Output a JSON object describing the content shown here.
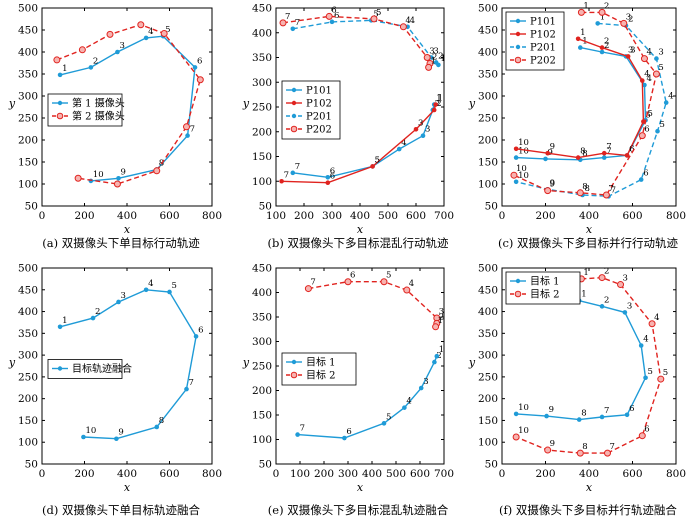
{
  "colors": {
    "blue": "#1f9bd7",
    "red": "#e0231f",
    "axis": "#000000"
  },
  "chart_data": [
    {
      "id": "a",
      "type": "line",
      "caption": "(a) 双摄像头下单目标行动轨迹",
      "xlabel": "x",
      "ylabel": "y",
      "xlim": [
        0,
        800
      ],
      "ylim": [
        50,
        500
      ],
      "xticks": [
        "0",
        "200",
        "400",
        "600",
        "800"
      ],
      "yticks": [
        "50",
        "100",
        "150",
        "200",
        "250",
        "300",
        "350",
        "400",
        "450",
        "500"
      ],
      "legend": {
        "position": "center-left"
      },
      "series": [
        {
          "name": "第 1 摄像头",
          "color": "blue",
          "dashed": false,
          "marker": "dot",
          "x": [
            85,
            230,
            355,
            490,
            570,
            720,
            685,
            540,
            360,
            230
          ],
          "y": [
            348,
            365,
            400,
            432,
            436,
            365,
            210,
            133,
            113,
            107
          ],
          "labels": [
            "1",
            "2",
            "3",
            "4",
            "5",
            "6",
            "7",
            "8",
            "9",
            "10"
          ]
        },
        {
          "name": "第 2 摄像头",
          "color": "red",
          "dashed": true,
          "marker": "circle",
          "x": [
            70,
            190,
            320,
            465,
            575,
            745,
            680,
            540,
            355,
            170
          ],
          "y": [
            382,
            405,
            440,
            462,
            442,
            337,
            230,
            130,
            100,
            113
          ],
          "labels": [
            "",
            "",
            "",
            "",
            "",
            "",
            "",
            "",
            "",
            ""
          ]
        }
      ]
    },
    {
      "id": "b",
      "type": "line",
      "caption": "(b) 双摄像头下多目标混乱行动轨迹",
      "xlabel": "x",
      "ylabel": "y",
      "xlim": [
        100,
        700
      ],
      "ylim": [
        50,
        450
      ],
      "xticks": [
        "100",
        "200",
        "300",
        "400",
        "500",
        "600",
        "700"
      ],
      "yticks": [
        "50",
        "100",
        "150",
        "200",
        "250",
        "300",
        "350",
        "400",
        "450"
      ],
      "legend": {
        "position": "center-left"
      },
      "series": [
        {
          "name": "P101",
          "color": "blue",
          "dashed": false,
          "marker": "dot",
          "x": [
            160,
            285,
            445,
            540,
            625,
            660,
            665
          ],
          "y": [
            117,
            108,
            130,
            165,
            192,
            244,
            255
          ],
          "labels": [
            "7",
            "6",
            "5",
            "4",
            "3",
            "2",
            "1"
          ]
        },
        {
          "name": "P102",
          "color": "red",
          "dashed": false,
          "marker": "dot",
          "x": [
            120,
            285,
            445,
            600,
            665,
            670
          ],
          "y": [
            100,
            97,
            130,
            205,
            244,
            255
          ],
          "labels": [
            "7",
            "6",
            "5",
            "3",
            "2",
            "1"
          ]
        },
        {
          "name": "P201",
          "color": "blue",
          "dashed": true,
          "marker": "dot",
          "x": [
            160,
            300,
            440,
            570,
            655,
            672,
            680
          ],
          "y": [
            408,
            422,
            425,
            412,
            350,
            340,
            335
          ],
          "labels": [
            "7",
            "6",
            "5",
            "4",
            "3",
            "2",
            "1"
          ]
        },
        {
          "name": "P202",
          "color": "red",
          "dashed": true,
          "marker": "circle",
          "x": [
            125,
            290,
            450,
            555,
            640,
            650,
            645
          ],
          "y": [
            420,
            433,
            428,
            412,
            350,
            338,
            330
          ],
          "labels": [
            "7",
            "6",
            "5",
            "4",
            "3",
            "2",
            "1"
          ]
        }
      ]
    },
    {
      "id": "c",
      "type": "line",
      "caption": "(c) 双摄像头下多目标并行行动轨迹",
      "xlabel": "x",
      "ylabel": "y",
      "xlim": [
        0,
        800
      ],
      "ylim": [
        50,
        500
      ],
      "xticks": [
        "0",
        "200",
        "400",
        "600",
        "800"
      ],
      "yticks": [
        "50",
        "100",
        "150",
        "200",
        "250",
        "300",
        "350",
        "400",
        "450",
        "500"
      ],
      "legend": {
        "position": "top-left"
      },
      "series": [
        {
          "name": "P101",
          "color": "blue",
          "dashed": false,
          "marker": "dot",
          "x": [
            360,
            460,
            570,
            655,
            660,
            575,
            470,
            360,
            200,
            65
          ],
          "y": [
            410,
            400,
            390,
            325,
            245,
            165,
            160,
            155,
            157,
            160
          ],
          "labels": [
            "1",
            "2",
            "3",
            "4",
            "5",
            "6",
            "7",
            "8",
            "9",
            "10"
          ]
        },
        {
          "name": "P102",
          "color": "red",
          "dashed": false,
          "marker": "dot",
          "x": [
            350,
            460,
            580,
            645,
            650,
            575,
            470,
            350,
            210,
            65
          ],
          "y": [
            430,
            410,
            390,
            335,
            242,
            165,
            170,
            160,
            170,
            180
          ],
          "labels": [
            "1",
            "2",
            "3",
            "4",
            "5",
            "6",
            "7",
            "8",
            "9",
            "10"
          ]
        },
        {
          "name": "P201",
          "color": "blue",
          "dashed": true,
          "marker": "dot",
          "x": [
            440,
            570,
            710,
            755,
            715,
            640,
            490,
            370,
            210,
            65
          ],
          "y": [
            465,
            460,
            385,
            285,
            220,
            110,
            72,
            75,
            88,
            105
          ],
          "labels": [
            "1",
            "2",
            "3",
            "4",
            "5",
            "6",
            "7",
            "8",
            "9",
            "10"
          ]
        },
        {
          "name": "P202",
          "color": "red",
          "dashed": true,
          "marker": "circle",
          "x": [
            365,
            460,
            560,
            655,
            710,
            645,
            480,
            360,
            210,
            55
          ],
          "y": [
            490,
            490,
            465,
            385,
            350,
            210,
            75,
            80,
            85,
            120
          ],
          "labels": [
            "1",
            "2",
            "3",
            "4",
            "5",
            "6",
            "7",
            "8",
            "9",
            "10"
          ]
        }
      ]
    },
    {
      "id": "d",
      "type": "line",
      "caption": "(d) 双摄像头下单目标轨迹融合",
      "xlabel": "x",
      "ylabel": "y",
      "xlim": [
        0,
        800
      ],
      "ylim": [
        50,
        500
      ],
      "xticks": [
        "0",
        "200",
        "400",
        "600",
        "800"
      ],
      "yticks": [
        "50",
        "100",
        "150",
        "200",
        "250",
        "300",
        "350",
        "400",
        "450",
        "500"
      ],
      "legend": {
        "position": "center-left"
      },
      "series": [
        {
          "name": "目标轨迹融合",
          "color": "blue",
          "dashed": false,
          "marker": "dot",
          "x": [
            85,
            240,
            360,
            490,
            600,
            725,
            680,
            540,
            350,
            195
          ],
          "y": [
            365,
            385,
            422,
            450,
            445,
            343,
            222,
            135,
            108,
            112
          ],
          "labels": [
            "1",
            "2",
            "3",
            "4",
            "5",
            "6",
            "7",
            "8",
            "9",
            "10"
          ]
        }
      ]
    },
    {
      "id": "e",
      "type": "line",
      "caption": "(e) 双摄像头下多目标混乱轨迹融合",
      "xlabel": "x",
      "ylabel": "y",
      "xlim": [
        0,
        700
      ],
      "ylim": [
        50,
        450
      ],
      "xticks": [
        "0",
        "100",
        "200",
        "300",
        "400",
        "500",
        "600",
        "700"
      ],
      "yticks": [
        "50",
        "100",
        "150",
        "200",
        "250",
        "300",
        "350",
        "400",
        "450"
      ],
      "legend": {
        "position": "center-left"
      },
      "series": [
        {
          "name": "目标 1",
          "color": "blue",
          "dashed": false,
          "marker": "dot",
          "x": [
            90,
            285,
            450,
            535,
            605,
            660,
            670
          ],
          "y": [
            110,
            103,
            133,
            165,
            205,
            258,
            270
          ],
          "labels": [
            "7",
            "6",
            "5",
            "4",
            "3",
            "2",
            "1"
          ]
        },
        {
          "name": "目标 2",
          "color": "red",
          "dashed": true,
          "marker": "circle",
          "x": [
            135,
            300,
            450,
            545,
            670,
            670,
            665
          ],
          "y": [
            408,
            422,
            422,
            405,
            348,
            337,
            330
          ],
          "labels": [
            "7",
            "6",
            "5",
            "4",
            "3",
            "2",
            "1"
          ]
        }
      ]
    },
    {
      "id": "f",
      "type": "line",
      "caption": "(f) 双摄像头下多目标并行轨迹融合",
      "xlabel": "x",
      "ylabel": "y",
      "xlim": [
        0,
        800
      ],
      "ylim": [
        50,
        500
      ],
      "xticks": [
        "0",
        "200",
        "400",
        "600",
        "800"
      ],
      "yticks": [
        "50",
        "100",
        "150",
        "200",
        "250",
        "300",
        "350",
        "400",
        "450",
        "500"
      ],
      "legend": {
        "position": "top-left"
      },
      "series": [
        {
          "name": "目标 1",
          "color": "blue",
          "dashed": false,
          "marker": "dot",
          "x": [
            355,
            460,
            565,
            640,
            660,
            575,
            460,
            355,
            205,
            65
          ],
          "y": [
            425,
            412,
            398,
            322,
            248,
            163,
            158,
            152,
            160,
            165
          ],
          "labels": [
            "1",
            "2",
            "3",
            "4",
            "5",
            "6",
            "7",
            "8",
            "9",
            "10"
          ]
        },
        {
          "name": "目标 2",
          "color": "red",
          "dashed": true,
          "marker": "circle",
          "x": [
            365,
            460,
            545,
            690,
            730,
            645,
            485,
            360,
            210,
            65
          ],
          "y": [
            475,
            478,
            462,
            372,
            245,
            115,
            75,
            75,
            82,
            112
          ],
          "labels": [
            "1",
            "2",
            "3",
            "4",
            "5",
            "6",
            "7",
            "8",
            "9",
            "10"
          ]
        }
      ]
    }
  ]
}
